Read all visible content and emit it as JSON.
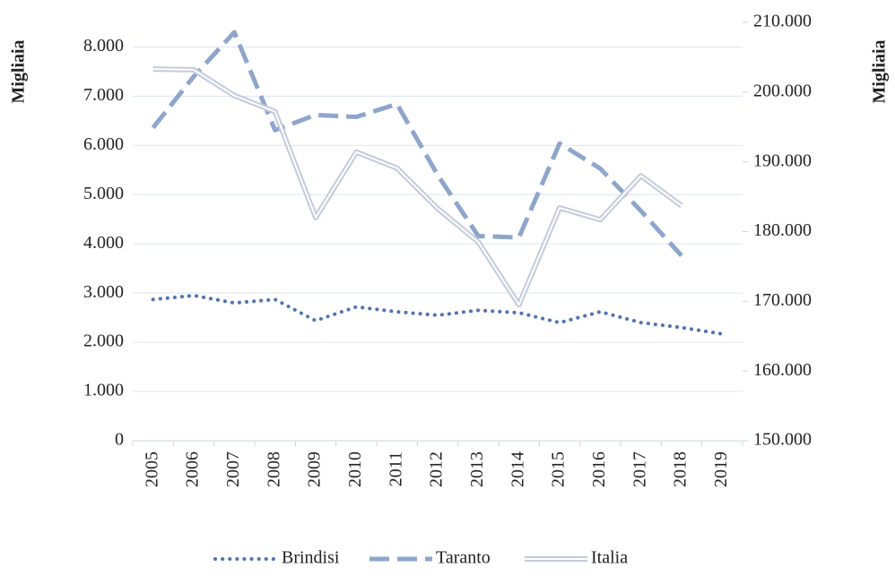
{
  "chart_data": {
    "type": "line",
    "categories": [
      "2005",
      "2006",
      "2007",
      "2008",
      "2009",
      "2010",
      "2011",
      "2012",
      "2013",
      "2014",
      "2015",
      "2016",
      "2017",
      "2018",
      "2019"
    ],
    "y_label": "Migliaia",
    "y2_label": "Migliaia",
    "ylim": [
      0,
      8500
    ],
    "yticks": [
      0,
      {
        "value": 1000,
        "label": "1.000"
      },
      {
        "value": 2000,
        "label": "2.000"
      },
      {
        "value": 3000,
        "label": "3.000"
      },
      {
        "value": 4000,
        "label": "4.000"
      },
      {
        "value": 5000,
        "label": "5.000"
      },
      {
        "value": 6000,
        "label": "6.000"
      },
      {
        "value": 7000,
        "label": "7.000"
      },
      {
        "value": 8000,
        "label": "8.000"
      }
    ],
    "y2lim": [
      150000,
      210000
    ],
    "y2ticks": [
      {
        "value": 150000,
        "label": "150.000"
      },
      {
        "value": 160000,
        "label": "160.000"
      },
      {
        "value": 170000,
        "label": "170.000"
      },
      {
        "value": 180000,
        "label": "180.000"
      },
      {
        "value": 190000,
        "label": "190.000"
      },
      {
        "value": 200000,
        "label": "200.000"
      },
      {
        "value": 210000,
        "label": "210.000"
      }
    ],
    "grid": true,
    "legend": "bottom",
    "series": [
      {
        "name": "Brindisi",
        "color": "#4f74b0",
        "style": "dotted",
        "values": [
          2870,
          2950,
          2800,
          2870,
          2440,
          2720,
          2620,
          2550,
          2650,
          2600,
          2400,
          2620,
          2400,
          2300,
          2170
        ]
      },
      {
        "name": "Taranto",
        "color": "#8ea5cc",
        "style": "dashed",
        "values": [
          6360,
          7400,
          8300,
          6310,
          6620,
          6580,
          6840,
          5400,
          4160,
          4130,
          6040,
          5530,
          4670,
          3760,
          null
        ]
      },
      {
        "name": "Italia",
        "color": "#c3cbdb",
        "style": "double",
        "axis": "y2",
        "values": [
          203300,
          203200,
          199500,
          197200,
          182000,
          191400,
          189100,
          183300,
          178500,
          169500,
          183400,
          181700,
          188000,
          183700,
          null
        ]
      }
    ]
  }
}
